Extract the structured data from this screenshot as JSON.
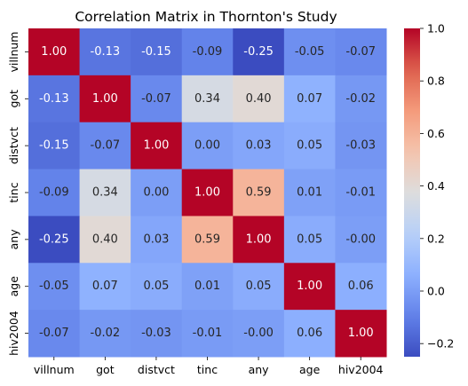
{
  "chart_data": {
    "type": "heatmap",
    "title": "Correlation Matrix in Thornton's Study",
    "xlabel": "",
    "ylabel": "",
    "x_categories": [
      "villnum",
      "got",
      "distvct",
      "tinc",
      "any",
      "age",
      "hiv2004"
    ],
    "y_categories": [
      "villnum",
      "got",
      "distvct",
      "tinc",
      "any",
      "age",
      "hiv2004"
    ],
    "values": [
      [
        1.0,
        -0.13,
        -0.15,
        -0.09,
        -0.25,
        -0.05,
        -0.07
      ],
      [
        -0.13,
        1.0,
        -0.07,
        0.34,
        0.4,
        0.07,
        -0.02
      ],
      [
        -0.15,
        -0.07,
        1.0,
        0.0,
        0.03,
        0.05,
        -0.03
      ],
      [
        -0.09,
        0.34,
        0.0,
        1.0,
        0.59,
        0.01,
        -0.01
      ],
      [
        -0.25,
        0.4,
        0.03,
        0.59,
        1.0,
        0.05,
        -0.0
      ],
      [
        -0.05,
        0.07,
        0.05,
        0.01,
        0.05,
        1.0,
        0.06
      ],
      [
        -0.07,
        -0.02,
        -0.03,
        -0.01,
        -0.0,
        0.06,
        1.0
      ]
    ],
    "labels": [
      [
        "1.00",
        "-0.13",
        "-0.15",
        "-0.09",
        "-0.25",
        "-0.05",
        "-0.07"
      ],
      [
        "-0.13",
        "1.00",
        "-0.07",
        "0.34",
        "0.40",
        "0.07",
        "-0.02"
      ],
      [
        "-0.15",
        "-0.07",
        "1.00",
        "0.00",
        "0.03",
        "0.05",
        "-0.03"
      ],
      [
        "-0.09",
        "0.34",
        "0.00",
        "1.00",
        "0.59",
        "0.01",
        "-0.01"
      ],
      [
        "-0.25",
        "0.40",
        "0.03",
        "0.59",
        "1.00",
        "0.05",
        "-0.00"
      ],
      [
        "-0.05",
        "0.07",
        "0.05",
        "0.01",
        "0.05",
        "1.00",
        "0.06"
      ],
      [
        "-0.07",
        "-0.02",
        "-0.03",
        "-0.01",
        "-0.00",
        "0.06",
        "1.00"
      ]
    ],
    "colormap": "coolwarm",
    "vmin": -0.25,
    "vmax": 1.0,
    "colorbar": {
      "ticks": [
        -0.2,
        0.0,
        0.2,
        0.4,
        0.6,
        0.8,
        1.0
      ],
      "tick_labels": [
        "−0.2",
        "0.0",
        "0.2",
        "0.4",
        "0.6",
        "0.8",
        "1.0"
      ],
      "placement": "right"
    }
  }
}
